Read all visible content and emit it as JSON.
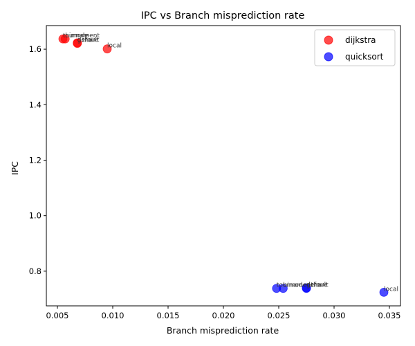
{
  "chart_data": {
    "type": "scatter",
    "title": "IPC vs Branch misprediction rate",
    "xlabel": "Branch misprediction rate",
    "ylabel": "IPC",
    "xlim": [
      0.004,
      0.036
    ],
    "ylim": [
      0.675,
      1.685
    ],
    "xticks": [
      0.005,
      0.01,
      0.015,
      0.02,
      0.025,
      0.03,
      0.035
    ],
    "xtick_labels": [
      "0.005",
      "0.010",
      "0.015",
      "0.020",
      "0.025",
      "0.030",
      "0.035"
    ],
    "yticks": [
      0.8,
      1.0,
      1.2,
      1.4,
      1.6
    ],
    "ytick_labels": [
      "0.8",
      "1.0",
      "1.2",
      "1.4",
      "1.6"
    ],
    "grid": false,
    "legend_position": "top-right",
    "series": [
      {
        "name": "dijkstra",
        "color": "#ff0000",
        "points": [
          {
            "x": 0.0055,
            "y": 1.637,
            "label": "tournament"
          },
          {
            "x": 0.0057,
            "y": 1.637,
            "label": "bimode"
          },
          {
            "x": 0.0068,
            "y": 1.621,
            "label": "gshare"
          },
          {
            "x": 0.0068,
            "y": 1.623,
            "label": "default"
          },
          {
            "x": 0.0095,
            "y": 1.601,
            "label": "local"
          }
        ]
      },
      {
        "name": "quicksort",
        "color": "#0000ff",
        "points": [
          {
            "x": 0.0248,
            "y": 0.738,
            "label": "tournament"
          },
          {
            "x": 0.0254,
            "y": 0.738,
            "label": "bimode"
          },
          {
            "x": 0.0275,
            "y": 0.738,
            "label": "gshare"
          },
          {
            "x": 0.0275,
            "y": 0.74,
            "label": "default"
          },
          {
            "x": 0.0345,
            "y": 0.724,
            "label": "local"
          }
        ]
      }
    ]
  }
}
